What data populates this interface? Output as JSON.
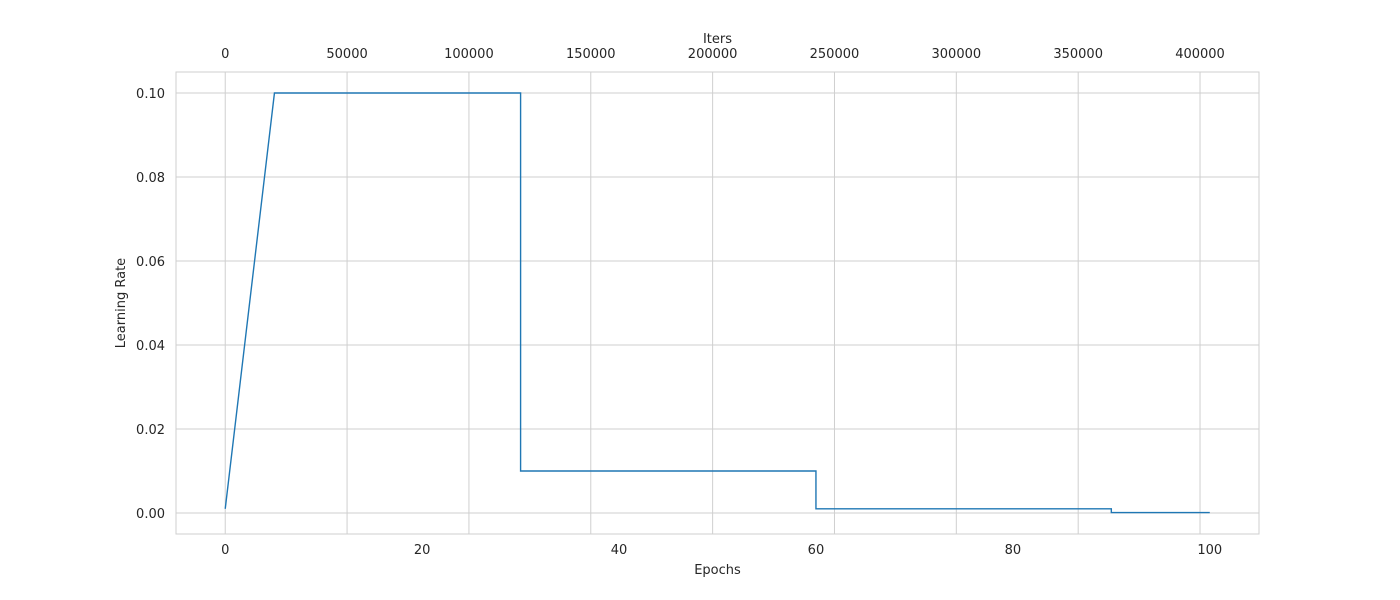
{
  "chart_data": {
    "type": "line",
    "xlabel": "Epochs",
    "ylabel": "Learning Rate",
    "x2label": "Iters",
    "xlim": [
      -5,
      105
    ],
    "ylim": [
      -0.005,
      0.105
    ],
    "x2lim": [
      -20200,
      424200
    ],
    "x_ticks": [
      0,
      20,
      40,
      60,
      80,
      100
    ],
    "x_tick_labels": [
      "0",
      "20",
      "40",
      "60",
      "80",
      "100"
    ],
    "x2_ticks": [
      0,
      50000,
      100000,
      150000,
      200000,
      250000,
      300000,
      350000,
      400000
    ],
    "x2_tick_labels": [
      "0",
      "50000",
      "100000",
      "150000",
      "200000",
      "250000",
      "300000",
      "350000",
      "400000"
    ],
    "y_ticks": [
      0.0,
      0.02,
      0.04,
      0.06,
      0.08,
      0.1
    ],
    "y_tick_labels": [
      "0.00",
      "0.02",
      "0.04",
      "0.06",
      "0.08",
      "0.10"
    ],
    "grid": true,
    "series": [
      {
        "color": "#1f77b4",
        "points": [
          [
            0,
            0.001
          ],
          [
            5,
            0.1
          ],
          [
            30,
            0.1
          ],
          [
            30,
            0.01
          ],
          [
            60,
            0.01
          ],
          [
            60,
            0.001
          ],
          [
            90,
            0.001
          ],
          [
            90,
            0.0001
          ],
          [
            100,
            0.0001
          ]
        ]
      }
    ]
  }
}
